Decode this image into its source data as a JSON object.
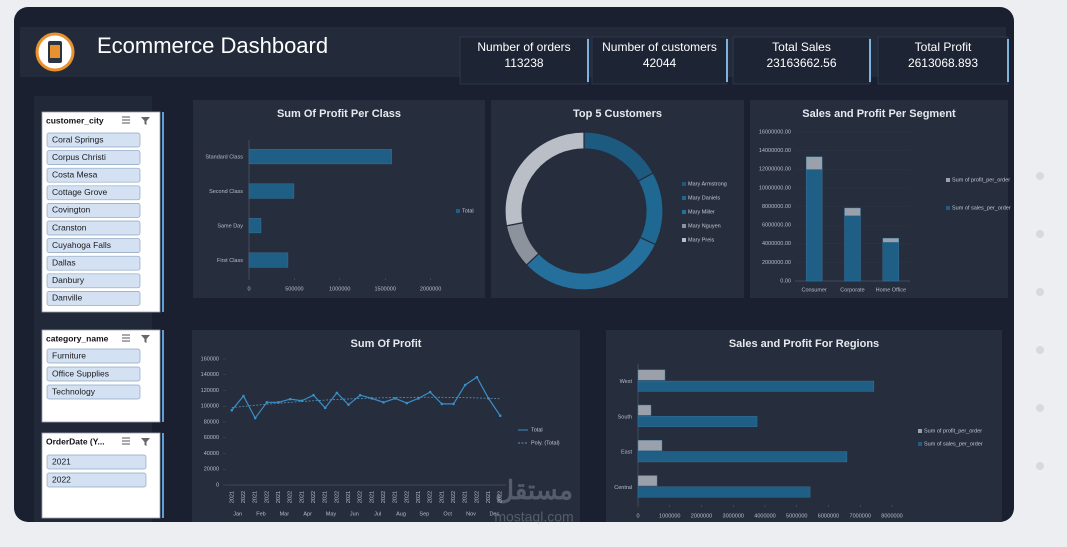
{
  "header": {
    "title": "Ecommerce Dashboard"
  },
  "kpis": [
    {
      "label": "Number of orders",
      "value": 113238
    },
    {
      "label": "Number of customers",
      "value": 42044
    },
    {
      "label": "Total Sales",
      "value": 23163662.56
    },
    {
      "label": "Total Profit",
      "value": 2613068.893
    }
  ],
  "slicers": [
    {
      "title": "customer_city",
      "items": [
        "Coral Springs",
        "Corpus Christi",
        "Costa Mesa",
        "Cottage Grove",
        "Covington",
        "Cranston",
        "Cuyahoga Falls",
        "Dallas",
        "Danbury",
        "Danville"
      ]
    },
    {
      "title": "category_name",
      "items": [
        "Furniture",
        "Office Supplies",
        "Technology"
      ]
    },
    {
      "title": "OrderDate (Y...",
      "items": [
        "2021",
        "2022"
      ]
    }
  ],
  "chart_data": [
    {
      "type": "bar",
      "orientation": "horizontal",
      "title": "Sum Of Profit Per Class",
      "categories": [
        "Standard Class",
        "Second Class",
        "Same Day",
        "First Class"
      ],
      "series": [
        {
          "name": "Total",
          "color": "#1f5f86",
          "values": [
            1571000,
            495000,
            132000,
            429000
          ]
        }
      ],
      "xlim": [
        0,
        2500000
      ],
      "xticks": [
        0,
        500000,
        1000000,
        1500000,
        2000000
      ],
      "legend": "right"
    },
    {
      "type": "donut",
      "title": "Top 5 Customers",
      "categories": [
        "Mary Armstrong",
        "Mary Daniels",
        "Mary Miller",
        "Mary Nguyen",
        "Mary Preis"
      ],
      "values": [
        17,
        15,
        31,
        9,
        28
      ],
      "colors": [
        "#1c5a80",
        "#1f6892",
        "#246f9c",
        "#8d939d",
        "#b9bec7"
      ],
      "legend": "right"
    },
    {
      "type": "bar",
      "stacked": true,
      "title": "Sales and Profit Per Segment",
      "categories": [
        "Consumer",
        "Corporate",
        "Home Office"
      ],
      "series": [
        {
          "name": "Sum of sales_per_order",
          "color": "#1f5f86",
          "values": [
            11980000,
            7020000,
            4160000
          ]
        },
        {
          "name": "Sum of profit_per_order",
          "color": "#9aa1ab",
          "values": [
            1360000,
            820000,
            440000
          ]
        }
      ],
      "ylim": [
        0,
        16000000
      ],
      "yticks": [
        {
          "value": 0,
          "label": "0.00"
        },
        {
          "value": 2000000,
          "label": "2000000.00"
        },
        {
          "value": 4000000,
          "label": "4000000.00"
        },
        {
          "value": 6000000,
          "label": "6000000.00"
        },
        {
          "value": 8000000,
          "label": "8000000.00"
        },
        {
          "value": 10000000,
          "label": "10000000.00"
        },
        {
          "value": 12000000,
          "label": "12000000.00"
        },
        {
          "value": 14000000,
          "label": "14000000.00"
        },
        {
          "value": 16000000,
          "label": "16000000.00"
        }
      ],
      "legend": "right"
    },
    {
      "type": "line",
      "title": "Sum Of Profit",
      "x_groups": [
        "Jan",
        "Feb",
        "Mar",
        "Apr",
        "May",
        "Jun",
        "Jul",
        "Aug",
        "Sep",
        "Oct",
        "Nov",
        "Dec"
      ],
      "categories": [
        "2021",
        "2022",
        "2021",
        "2022",
        "2021",
        "2022",
        "2021",
        "2022",
        "2021",
        "2022",
        "2021",
        "2022",
        "2021",
        "2022",
        "2021",
        "2022",
        "2021",
        "2022",
        "2021",
        "2022",
        "2021",
        "2022",
        "2021",
        "2022"
      ],
      "series": [
        {
          "name": "Total",
          "color": "#3a8fc8",
          "values": [
            95000,
            113000,
            85000,
            105000,
            105000,
            109000,
            107000,
            114000,
            98000,
            117000,
            102000,
            114000,
            110000,
            105000,
            110000,
            104000,
            110000,
            118000,
            103000,
            103000,
            127000,
            137000,
            110000,
            88000
          ]
        }
      ],
      "trendline": {
        "name": "Poly. (Total)",
        "color": "#5d8fb3"
      },
      "ylim": [
        0,
        160000
      ],
      "yticks": [
        0,
        20000,
        40000,
        60000,
        80000,
        100000,
        120000,
        140000,
        160000
      ],
      "legend": "right"
    },
    {
      "type": "bar",
      "orientation": "horizontal",
      "title": "Sales and Profit For Regions",
      "categories": [
        "West",
        "South",
        "East",
        "Central"
      ],
      "series": [
        {
          "name": "Sum of profit_per_order",
          "color": "#9aa1ab",
          "values": [
            850000,
            410000,
            756000,
            600000
          ]
        },
        {
          "name": "Sum of sales_per_order",
          "color": "#1f5f86",
          "values": [
            7430000,
            3750000,
            6580000,
            5420000
          ]
        }
      ],
      "xlim": [
        0,
        8000000
      ],
      "xticks": [
        0,
        1000000,
        2000000,
        3000000,
        4000000,
        5000000,
        6000000,
        7000000,
        8000000
      ],
      "legend": "right"
    }
  ],
  "watermark": {
    "brand": "مستقل",
    "site": "mostaql.com"
  }
}
